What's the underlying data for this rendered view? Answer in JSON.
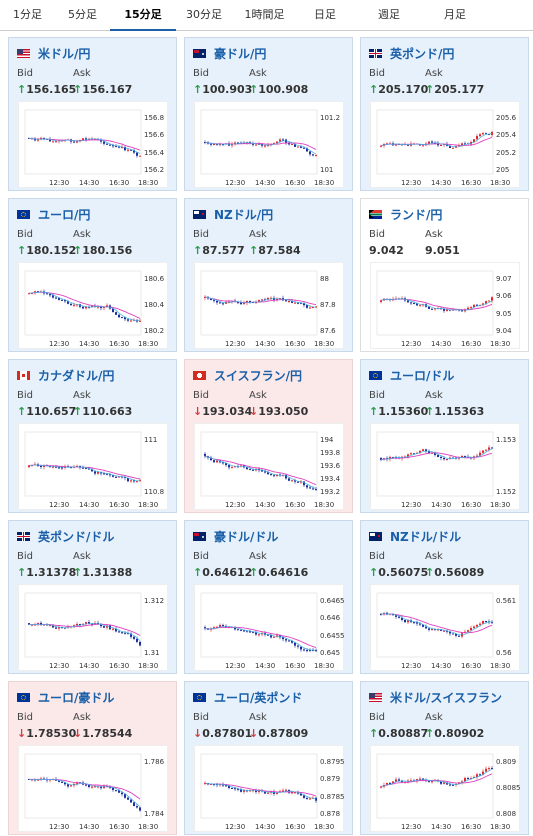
{
  "tabs": [
    {
      "label": "1分足",
      "active": false
    },
    {
      "label": "5分足",
      "active": false
    },
    {
      "label": "15分足",
      "active": true
    },
    {
      "label": "30分足",
      "active": false
    },
    {
      "label": "1時間足",
      "active": false
    },
    {
      "label": "日足",
      "active": false
    },
    {
      "label": "週足",
      "active": false
    },
    {
      "label": "月足",
      "active": false
    }
  ],
  "labels": {
    "bid": "Bid",
    "ask": "Ask"
  },
  "colors": {
    "pair": "#1a5fa8",
    "up_arrow": "#2a9d4a",
    "down_arrow": "#d23c3c",
    "candle_up": "#e0292e",
    "candle_down": "#1c2f9c",
    "ma_pink": "#e040c0",
    "ma_cyan": "#40b0e0"
  },
  "x_ticks": [
    "12:30",
    "14:30",
    "16:30",
    "18:30"
  ],
  "cards": [
    {
      "pair": "米ドル/円",
      "flag": "us-flag",
      "theme": "up",
      "bid_dir": "up",
      "bid": "156.165",
      "ask_dir": "up",
      "ask": "156.167",
      "y_ticks": [
        "156.8",
        "156.6",
        "156.4",
        "156.2"
      ]
    },
    {
      "pair": "豪ドル/円",
      "flag": "au-flag",
      "theme": "up",
      "bid_dir": "up",
      "bid": "100.903",
      "ask_dir": "up",
      "ask": "100.908",
      "y_ticks": [
        "101.2",
        "101"
      ]
    },
    {
      "pair": "英ポンド/円",
      "flag": "gb-flag",
      "theme": "up",
      "bid_dir": "up",
      "bid": "205.170",
      "ask_dir": "up",
      "ask": "205.177",
      "y_ticks": [
        "205.6",
        "205.4",
        "205.2",
        "205"
      ]
    },
    {
      "pair": "ユーロ/円",
      "flag": "eu-flag",
      "theme": "up",
      "bid_dir": "up",
      "bid": "180.152",
      "ask_dir": "up",
      "ask": "180.156",
      "y_ticks": [
        "180.6",
        "180.4",
        "180.2"
      ]
    },
    {
      "pair": "NZドル/円",
      "flag": "nz-flag",
      "theme": "up",
      "bid_dir": "up",
      "bid": "87.577",
      "ask_dir": "up",
      "ask": "87.584",
      "y_ticks": [
        "88",
        "87.8",
        "87.6"
      ]
    },
    {
      "pair": "ランド/円",
      "flag": "za-flag",
      "theme": "neutral",
      "bid_dir": "",
      "bid": "9.042",
      "ask_dir": "",
      "ask": "9.051",
      "y_ticks": [
        "9.07",
        "9.06",
        "9.05",
        "9.04"
      ]
    },
    {
      "pair": "カナダドル/円",
      "flag": "ca-flag",
      "theme": "up",
      "bid_dir": "up",
      "bid": "110.657",
      "ask_dir": "up",
      "ask": "110.663",
      "y_ticks": [
        "111",
        "110.8"
      ]
    },
    {
      "pair": "スイスフラン/円",
      "flag": "ch-flag",
      "theme": "down",
      "bid_dir": "down",
      "bid": "193.034",
      "ask_dir": "down",
      "ask": "193.050",
      "y_ticks": [
        "194",
        "193.8",
        "193.6",
        "193.4",
        "193.2"
      ]
    },
    {
      "pair": "ユーロ/ドル",
      "flag": "eu-flag",
      "theme": "up",
      "bid_dir": "up",
      "bid": "1.15360",
      "ask_dir": "up",
      "ask": "1.15363",
      "y_ticks": [
        "1.153",
        "1.152"
      ]
    },
    {
      "pair": "英ポンド/ドル",
      "flag": "gb-flag",
      "theme": "up",
      "bid_dir": "up",
      "bid": "1.31378",
      "ask_dir": "up",
      "ask": "1.31388",
      "y_ticks": [
        "1.312",
        "1.31"
      ]
    },
    {
      "pair": "豪ドル/ドル",
      "flag": "au-flag",
      "theme": "up",
      "bid_dir": "up",
      "bid": "0.64612",
      "ask_dir": "up",
      "ask": "0.64616",
      "y_ticks": [
        "0.6465",
        "0.646",
        "0.6455",
        "0.645"
      ]
    },
    {
      "pair": "NZドル/ドル",
      "flag": "nz-flag",
      "theme": "up",
      "bid_dir": "up",
      "bid": "0.56075",
      "ask_dir": "up",
      "ask": "0.56089",
      "y_ticks": [
        "0.561",
        "0.56"
      ]
    },
    {
      "pair": "ユーロ/豪ドル",
      "flag": "eu-flag",
      "theme": "down",
      "bid_dir": "down",
      "bid": "1.78530",
      "ask_dir": "down",
      "ask": "1.78544",
      "y_ticks": [
        "1.786",
        "1.784"
      ]
    },
    {
      "pair": "ユーロ/英ポンド",
      "flag": "eu-flag",
      "theme": "up",
      "bid_dir": "down",
      "bid": "0.87801",
      "ask_dir": "down",
      "ask": "0.87809",
      "y_ticks": [
        "0.8795",
        "0.879",
        "0.8785",
        "0.878"
      ]
    },
    {
      "pair": "米ドル/スイスフラン",
      "flag": "us-flag",
      "theme": "up",
      "bid_dir": "up",
      "bid": "0.80887",
      "ask_dir": "up",
      "ask": "0.80902",
      "y_ticks": [
        "0.809",
        "0.8085",
        "0.808"
      ]
    }
  ]
}
